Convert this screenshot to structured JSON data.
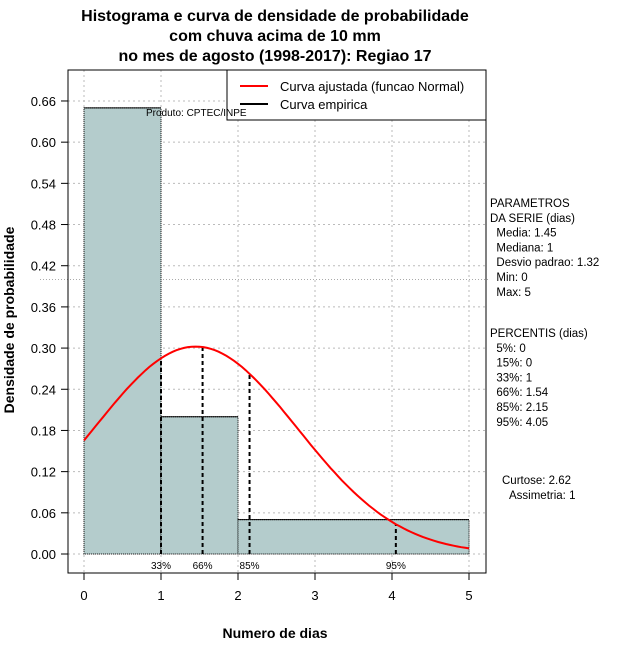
{
  "chart_data": {
    "type": "bar",
    "title": [
      "Histograma e curva de densidade de probabilidade",
      "com chuva acima de 10 mm",
      "no mes de agosto (1998-2017): Regiao 17"
    ],
    "xlabel": "Numero de dias",
    "ylabel": "Densidade de probabilidade",
    "xlim": [
      -0.2,
      5.2
    ],
    "ylim": [
      -0.028,
      0.7
    ],
    "xticks": [
      0,
      1,
      2,
      3,
      4,
      5
    ],
    "yticks": [
      "0.00",
      "0.06",
      "0.12",
      "0.18",
      "0.24",
      "0.30",
      "0.36",
      "0.42",
      "0.48",
      "0.54",
      "0.60",
      "0.66"
    ],
    "bins": [
      {
        "from": 0,
        "to": 1,
        "density": 0.65
      },
      {
        "from": 1,
        "to": 2,
        "density": 0.2
      },
      {
        "from": 2,
        "to": 5,
        "density": 0.05
      }
    ],
    "normal_fit": {
      "mean": 1.45,
      "sd": 1.32
    },
    "percentile_lines": [
      {
        "label": "33%",
        "x": 1
      },
      {
        "label": "66%",
        "x": 1.54
      },
      {
        "label": "85%",
        "x": 2.15
      },
      {
        "label": "95%",
        "x": 4.05
      }
    ],
    "legend": [
      {
        "label": "Curva ajustada (funcao Normal)",
        "color": "#ff0000"
      },
      {
        "label": "Curva empirica",
        "color": "#000000"
      }
    ],
    "legend_position": "top-right",
    "annotation": "Produto: CPTEC/INPE",
    "bar_color": "#b4cccc",
    "reference_line_y": 0.4
  },
  "side_panel": {
    "params": [
      "PARAMETROS",
      "DA SERIE (dias)",
      "  Media: 1.45",
      "  Mediana: 1",
      "  Desvio padrao: 1.32",
      "  Min: 0",
      "  Max: 5"
    ],
    "percentis": [
      "PERCENTIS (dias)",
      "  5%: 0",
      "  15%: 0",
      "  33%: 1",
      "  66%: 1.54",
      "  85%: 2.15",
      "  95%: 4.05"
    ],
    "stats": [
      "Curtose: 2.62",
      "Assimetria: 1"
    ]
  }
}
